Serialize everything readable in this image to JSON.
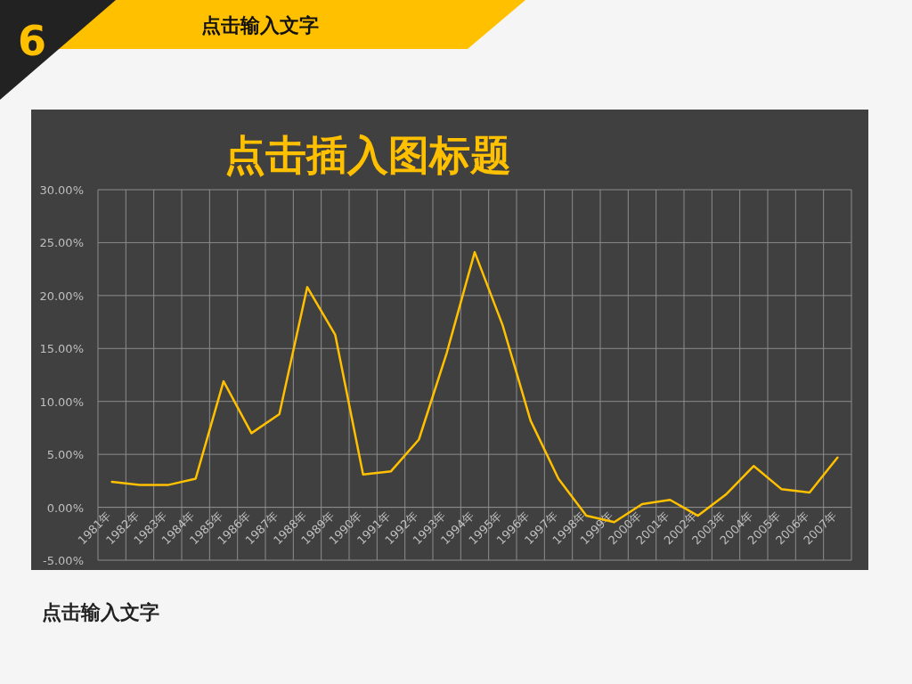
{
  "chart_data": {
    "type": "line",
    "title": "点击插入图标题",
    "annotations": [
      "6",
      "点击输入文字",
      "点击输入文字"
    ],
    "categories": [
      "1981年",
      "1982年",
      "1983年",
      "1984年",
      "1985年",
      "1986年",
      "1987年",
      "1988年",
      "1989年",
      "1990年",
      "1991年",
      "1992年",
      "1993年",
      "1994年",
      "1995年",
      "1996年",
      "1997年",
      "1998年",
      "1999年",
      "2000年",
      "2001年",
      "2002年",
      "2003年",
      "2004年",
      "2005年",
      "2006年",
      "2007年"
    ],
    "series": [
      {
        "color": "#ffc000",
        "values": [
          2.4,
          2.1,
          2.1,
          2.7,
          11.9,
          7.0,
          8.8,
          20.8,
          16.3,
          3.1,
          3.4,
          6.4,
          14.6,
          24.1,
          17.2,
          8.2,
          2.7,
          -0.8,
          -1.4,
          0.3,
          0.7,
          -0.8,
          1.2,
          3.9,
          1.7,
          1.4,
          4.7
        ]
      }
    ],
    "ylim": [
      -5,
      30
    ],
    "yticks": [
      {
        "value": -5,
        "label": "-5.00%"
      },
      {
        "value": 0,
        "label": "0.00%"
      },
      {
        "value": 5,
        "label": "5.00%"
      },
      {
        "value": 10,
        "label": "10.00%"
      },
      {
        "value": 15,
        "label": "15.00%"
      },
      {
        "value": 20,
        "label": "20.00%"
      },
      {
        "value": 25,
        "label": "25.00%"
      },
      {
        "value": 30,
        "label": "30.00%"
      }
    ],
    "grid": true,
    "marker": "none",
    "line_style": "solid"
  }
}
